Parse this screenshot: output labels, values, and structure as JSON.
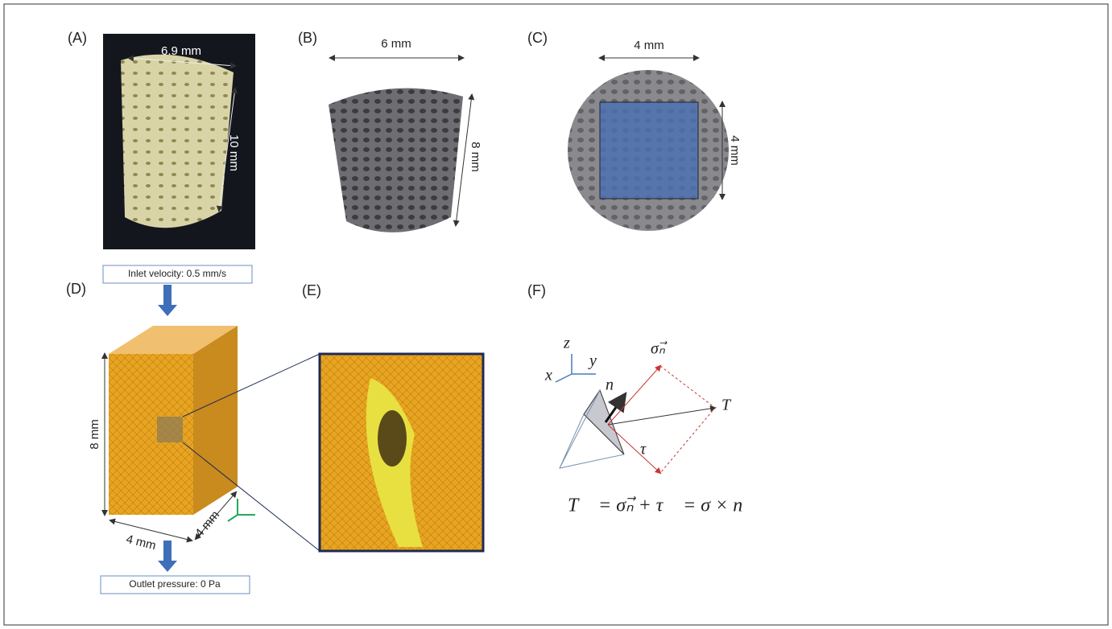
{
  "panels": [
    {
      "label": "(A)",
      "dims": [
        "6.9 mm",
        "10 mm"
      ]
    },
    {
      "label": "(B)",
      "dims": [
        "6 mm",
        "8 mm"
      ]
    },
    {
      "label": "(C)",
      "dims": [
        "4 mm",
        "4 mm"
      ]
    },
    {
      "label": "(D)",
      "dims": [
        "8 mm",
        "4 mm",
        "4 mm"
      ],
      "inlet": "Inlet velocity: 0.5 mm/s",
      "outlet": "Outlet pressure: 0 Pa"
    },
    {
      "label": "(E)"
    },
    {
      "label": "(F)",
      "vectors": {
        "z": "z⃗",
        "y": "y⃗",
        "x": "x⃗",
        "n": "n⃗",
        "sigma": "σₙ⃗",
        "T": "T⃗",
        "tau": "τ⃗"
      },
      "equation": "T⃗ = σₙ⃗ + τ⃗ = σ × n⃗"
    }
  ]
}
